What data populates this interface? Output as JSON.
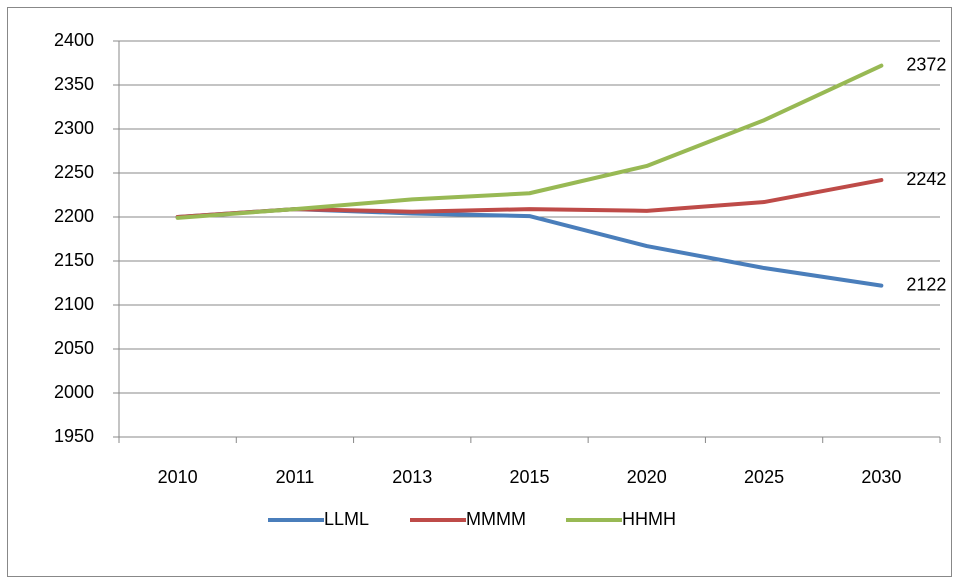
{
  "chart_data": {
    "type": "line",
    "categories": [
      "2010",
      "2011",
      "2013",
      "2015",
      "2020",
      "2025",
      "2030"
    ],
    "series": [
      {
        "name": "LLML",
        "color": "#4a7ebb",
        "values": [
          2200,
          2209,
          2204,
          2201,
          2167,
          2142,
          2122
        ]
      },
      {
        "name": "MMMM",
        "color": "#be4b48",
        "values": [
          2200,
          2209,
          2206,
          2209,
          2207,
          2217,
          2242
        ]
      },
      {
        "name": "HHMH",
        "color": "#98b954",
        "values": [
          2199,
          2209,
          2220,
          2227,
          2258,
          2310,
          2372
        ]
      }
    ],
    "ylim": [
      1950,
      2400
    ],
    "yticks": [
      1950,
      2000,
      2050,
      2100,
      2150,
      2200,
      2250,
      2300,
      2350,
      2400
    ],
    "grid": true,
    "legend": "bottom"
  }
}
